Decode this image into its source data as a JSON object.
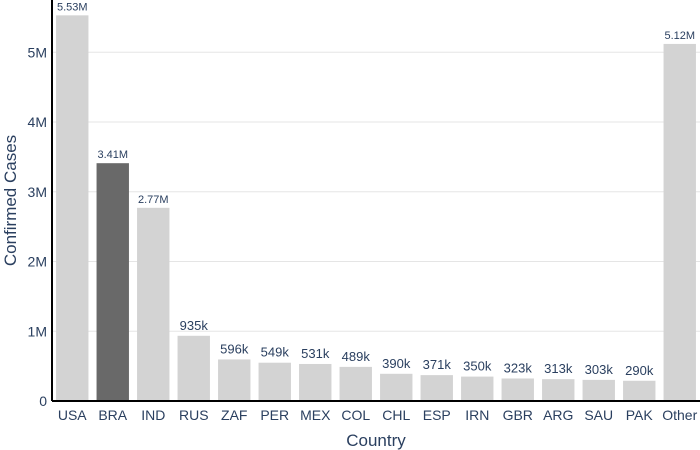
{
  "chart_data": {
    "type": "bar",
    "xlabel": "Country",
    "ylabel": "Confirmed Cases",
    "ylim": [
      0,
      5750000
    ],
    "yticks": [
      {
        "value": 0,
        "label": "0"
      },
      {
        "value": 1000000,
        "label": "1M"
      },
      {
        "value": 2000000,
        "label": "2M"
      },
      {
        "value": 3000000,
        "label": "3M"
      },
      {
        "value": 4000000,
        "label": "4M"
      },
      {
        "value": 5000000,
        "label": "5M"
      }
    ],
    "grid": true,
    "legend": "none",
    "categories": [
      "USA",
      "BRA",
      "IND",
      "RUS",
      "ZAF",
      "PER",
      "MEX",
      "COL",
      "CHL",
      "ESP",
      "IRN",
      "GBR",
      "ARG",
      "SAU",
      "PAK",
      "Other"
    ],
    "values": [
      5530000,
      3410000,
      2770000,
      935000,
      596000,
      549000,
      531000,
      489000,
      390000,
      371000,
      350000,
      323000,
      313000,
      303000,
      290000,
      5120000
    ],
    "data_labels": [
      "5.53M",
      "3.41M",
      "2.77M",
      "935k",
      "596k",
      "549k",
      "531k",
      "489k",
      "390k",
      "371k",
      "350k",
      "323k",
      "313k",
      "303k",
      "290k",
      "5.12M"
    ],
    "highlight_category": "BRA",
    "colors": {
      "bar": "#d3d3d3",
      "highlight": "#696969",
      "grid": "#e5e5e5",
      "axis": "#000000",
      "text": "#2a3f5f"
    }
  }
}
